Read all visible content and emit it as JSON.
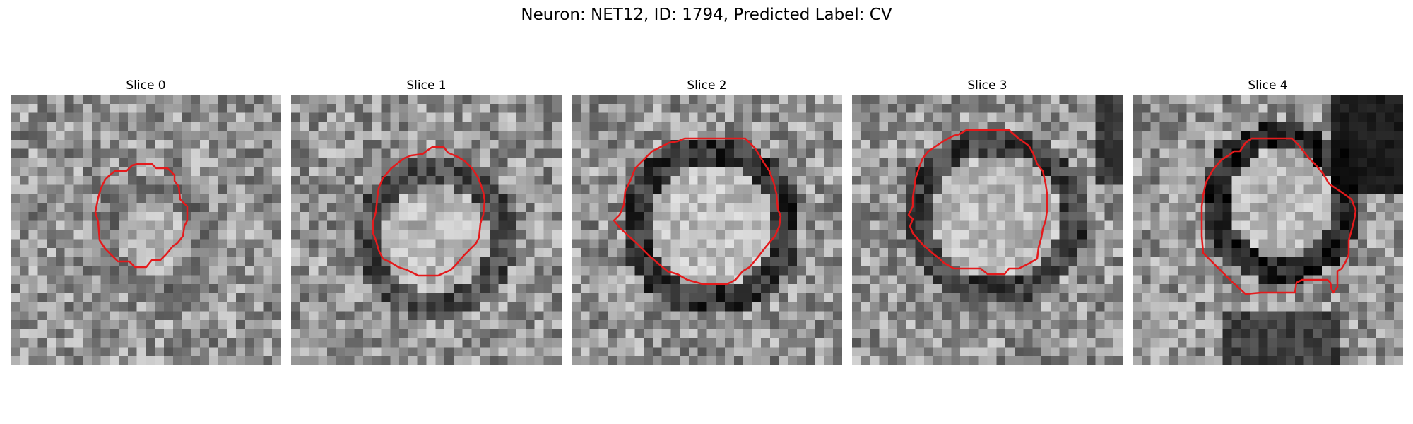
{
  "figure": {
    "title": "Neuron: NET12, ID: 1794, Predicted Label: CV"
  },
  "slices": [
    {
      "label": "Slice 0"
    },
    {
      "label": "Slice 1"
    },
    {
      "label": "Slice 2"
    },
    {
      "label": "Slice 3"
    },
    {
      "label": "Slice 4"
    }
  ],
  "colors": {
    "contour": "#e41a1c",
    "colormap": "gray"
  }
}
